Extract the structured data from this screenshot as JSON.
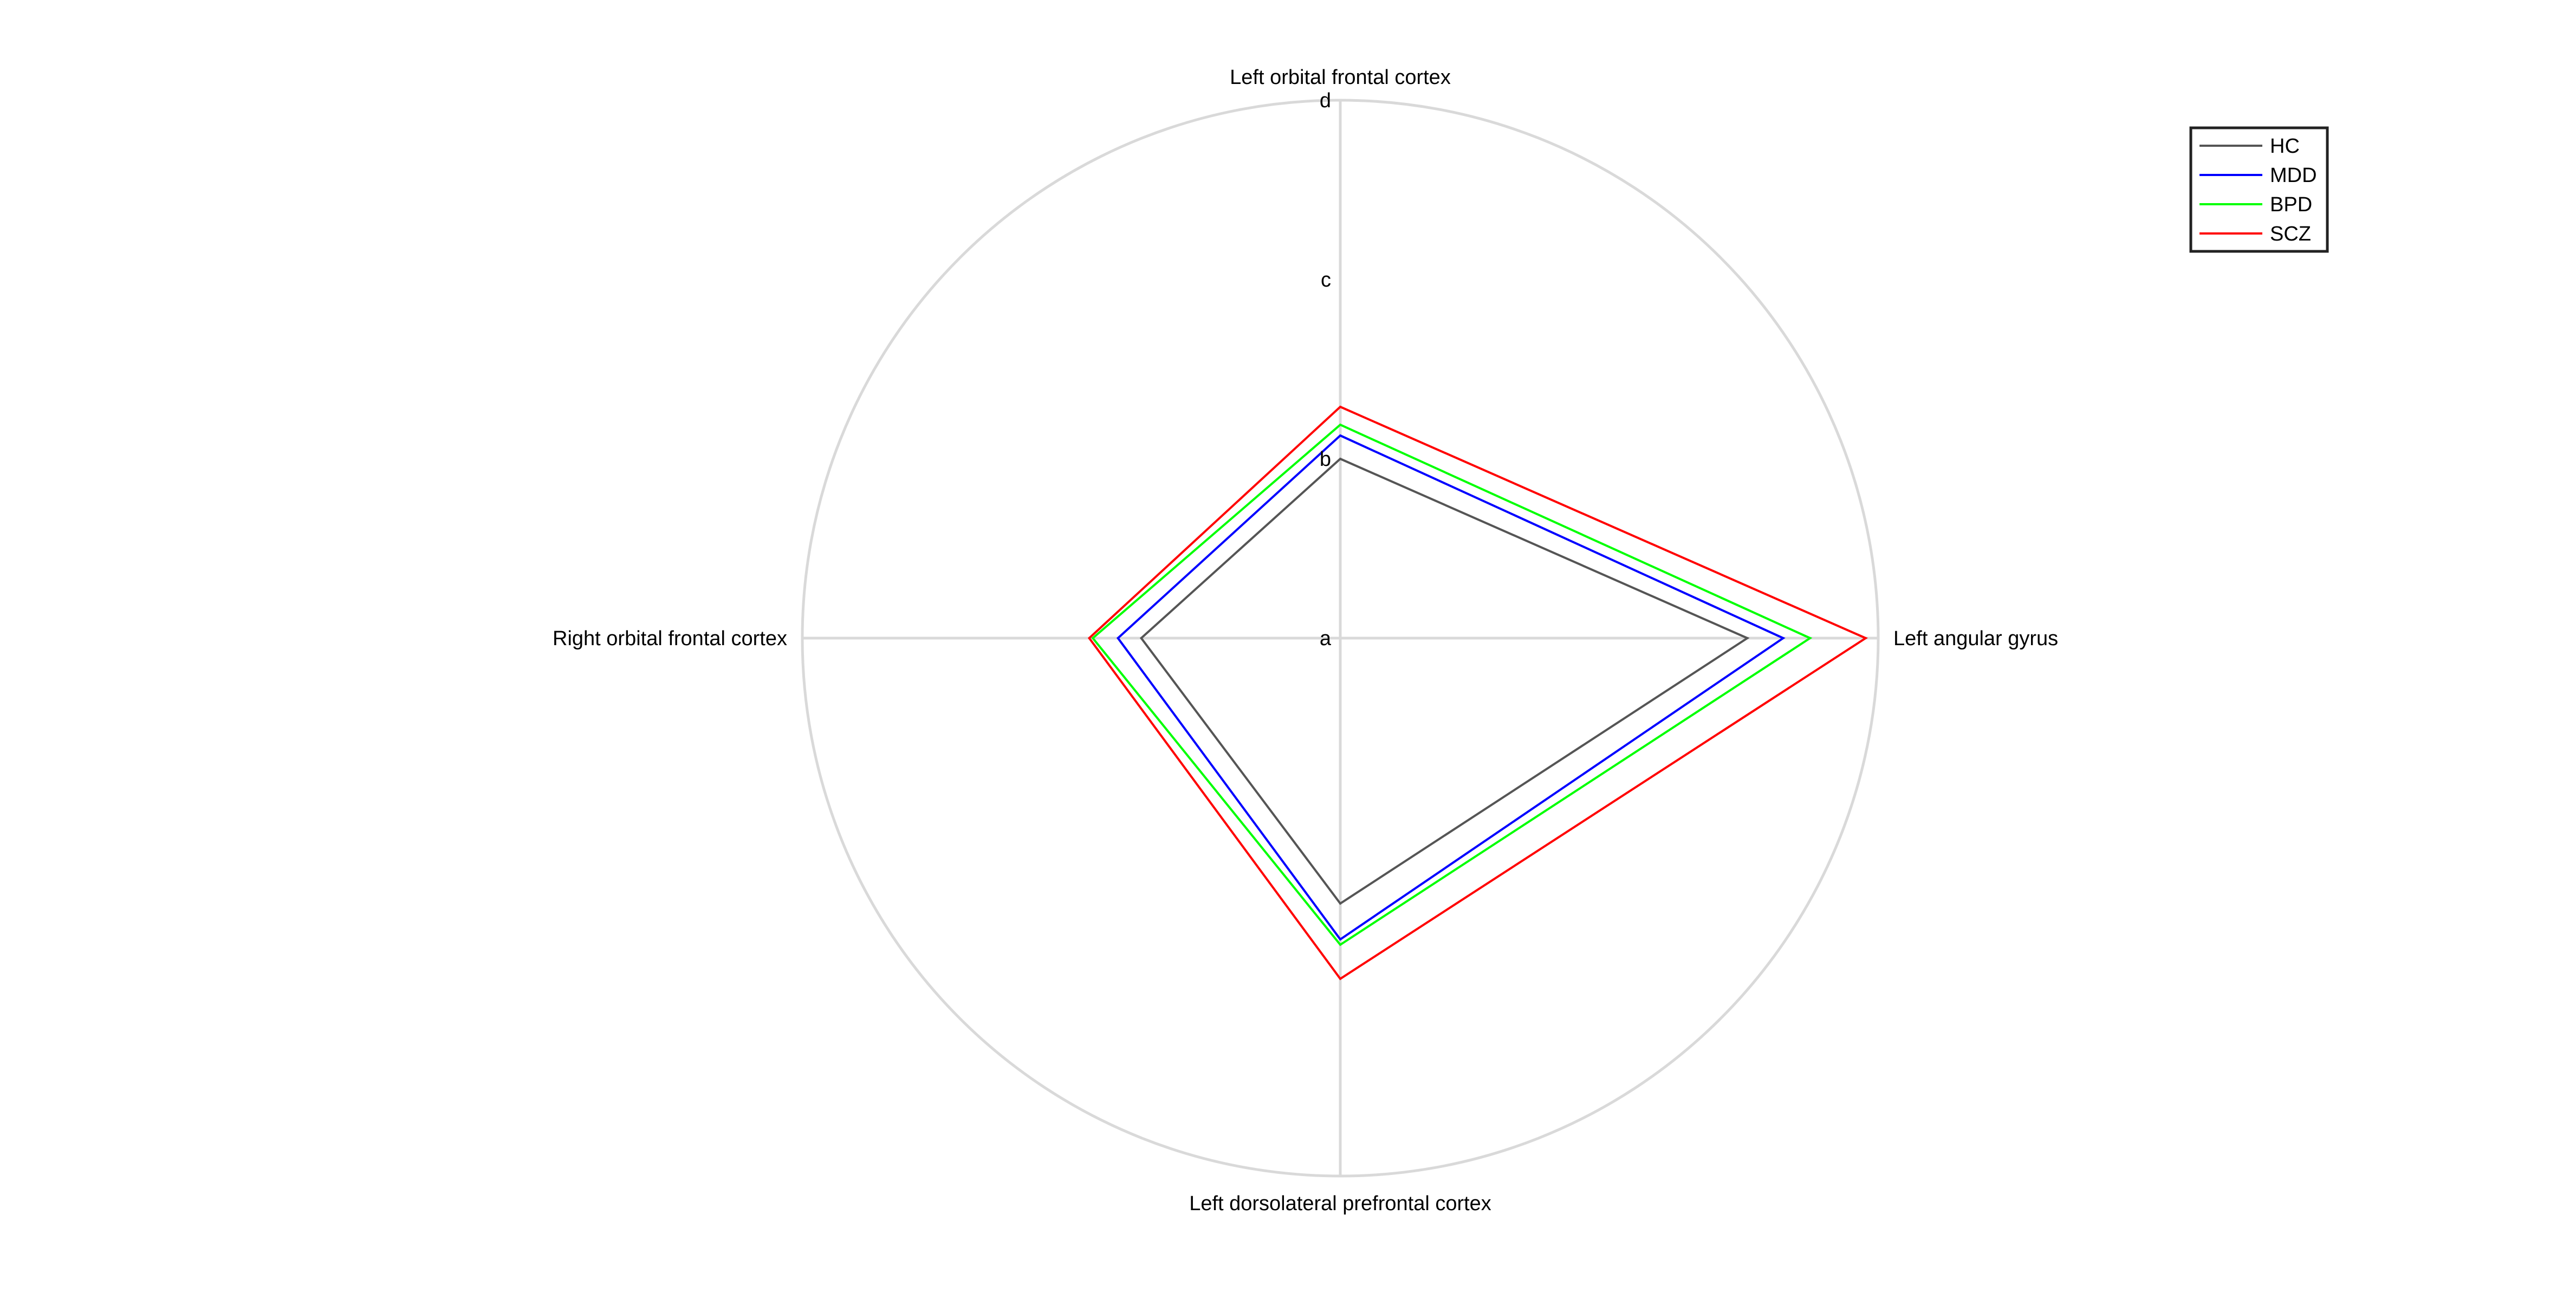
{
  "chart_data": {
    "type": "radar",
    "axes": [
      "Left orbital frontal cortex",
      "Left angular gyrus",
      "Left dorsolateral prefrontal cortex",
      "Right orbital frontal cortex"
    ],
    "radial_ticks": [
      "a",
      "b",
      "c",
      "d"
    ],
    "radial_range": [
      0,
      3
    ],
    "grid": true,
    "legend_position": "top-right",
    "series": [
      {
        "name": "HC",
        "color": "#555555",
        "values": [
          1.0,
          2.27,
          1.48,
          1.11
        ]
      },
      {
        "name": "MDD",
        "color": "#0000ff",
        "values": [
          1.13,
          2.47,
          1.68,
          1.24
        ]
      },
      {
        "name": "BPD",
        "color": "#00ff00",
        "values": [
          1.19,
          2.62,
          1.71,
          1.38
        ]
      },
      {
        "name": "SCZ",
        "color": "#ff0000",
        "values": [
          1.29,
          2.93,
          1.9,
          1.4
        ]
      }
    ]
  }
}
